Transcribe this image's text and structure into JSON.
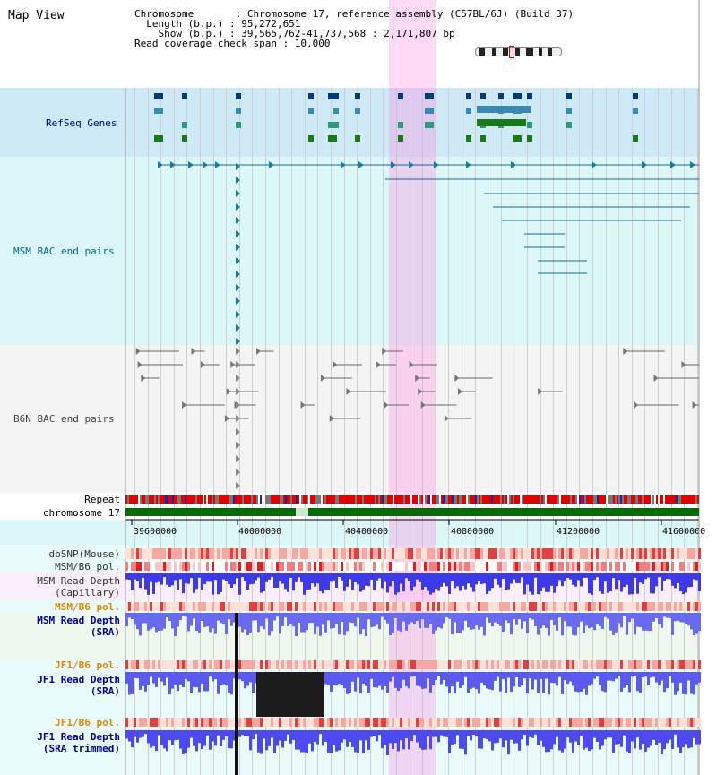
{
  "header": {
    "title": "Map View",
    "info_lines": [
      "Chromosome       : Chromosome 17, reference assembly (C57BL/6J) (Build 37)",
      "  Length (b.p.) : 95,272,651",
      "    Show (b.p.) : 39,565,762-41,737,568 : 2,171,807 bp",
      "Read coverage check span : 10,000"
    ]
  },
  "tracks": {
    "refseq": "RefSeq Genes",
    "msm_bac": "MSM BAC end pairs",
    "b6n_bac": "B6N BAC end pairs",
    "repeat": "Repeat",
    "chromosome": "chromosome 17",
    "dbsnp": "dbSNP(Mouse)",
    "msm_b6_pol": "MSM/B6 pol.",
    "msm_depth_cap_1": "MSM Read Depth",
    "msm_depth_cap_2": "(Capillary)",
    "msm_b6_pol2": "MSM/B6 pol.",
    "msm_depth_sra_1": "MSM Read Depth",
    "msm_depth_sra_2": "(SRA)",
    "jf1_pol": "JF1/B6 pol.",
    "jf1_depth_1": "JF1 Read Depth",
    "jf1_depth_2": "(SRA)",
    "jf1_pol2": "JF1/B6 pol.",
    "jf1_trim_1": "JF1 Read Depth",
    "jf1_trim_2": "(SRA trimmed)"
  },
  "axis": {
    "ticks": [
      "39600000",
      "40000000",
      "40400000",
      "40800000",
      "41200000",
      "41600000"
    ]
  },
  "colors": {
    "refseq_bg": "#cfeaf7",
    "msm_bg": "#dcf7f7",
    "blue_label": "#000099",
    "teal_label": "#006a8a",
    "orange_label": "#e08a00",
    "highlight": "#ff78dc"
  }
}
